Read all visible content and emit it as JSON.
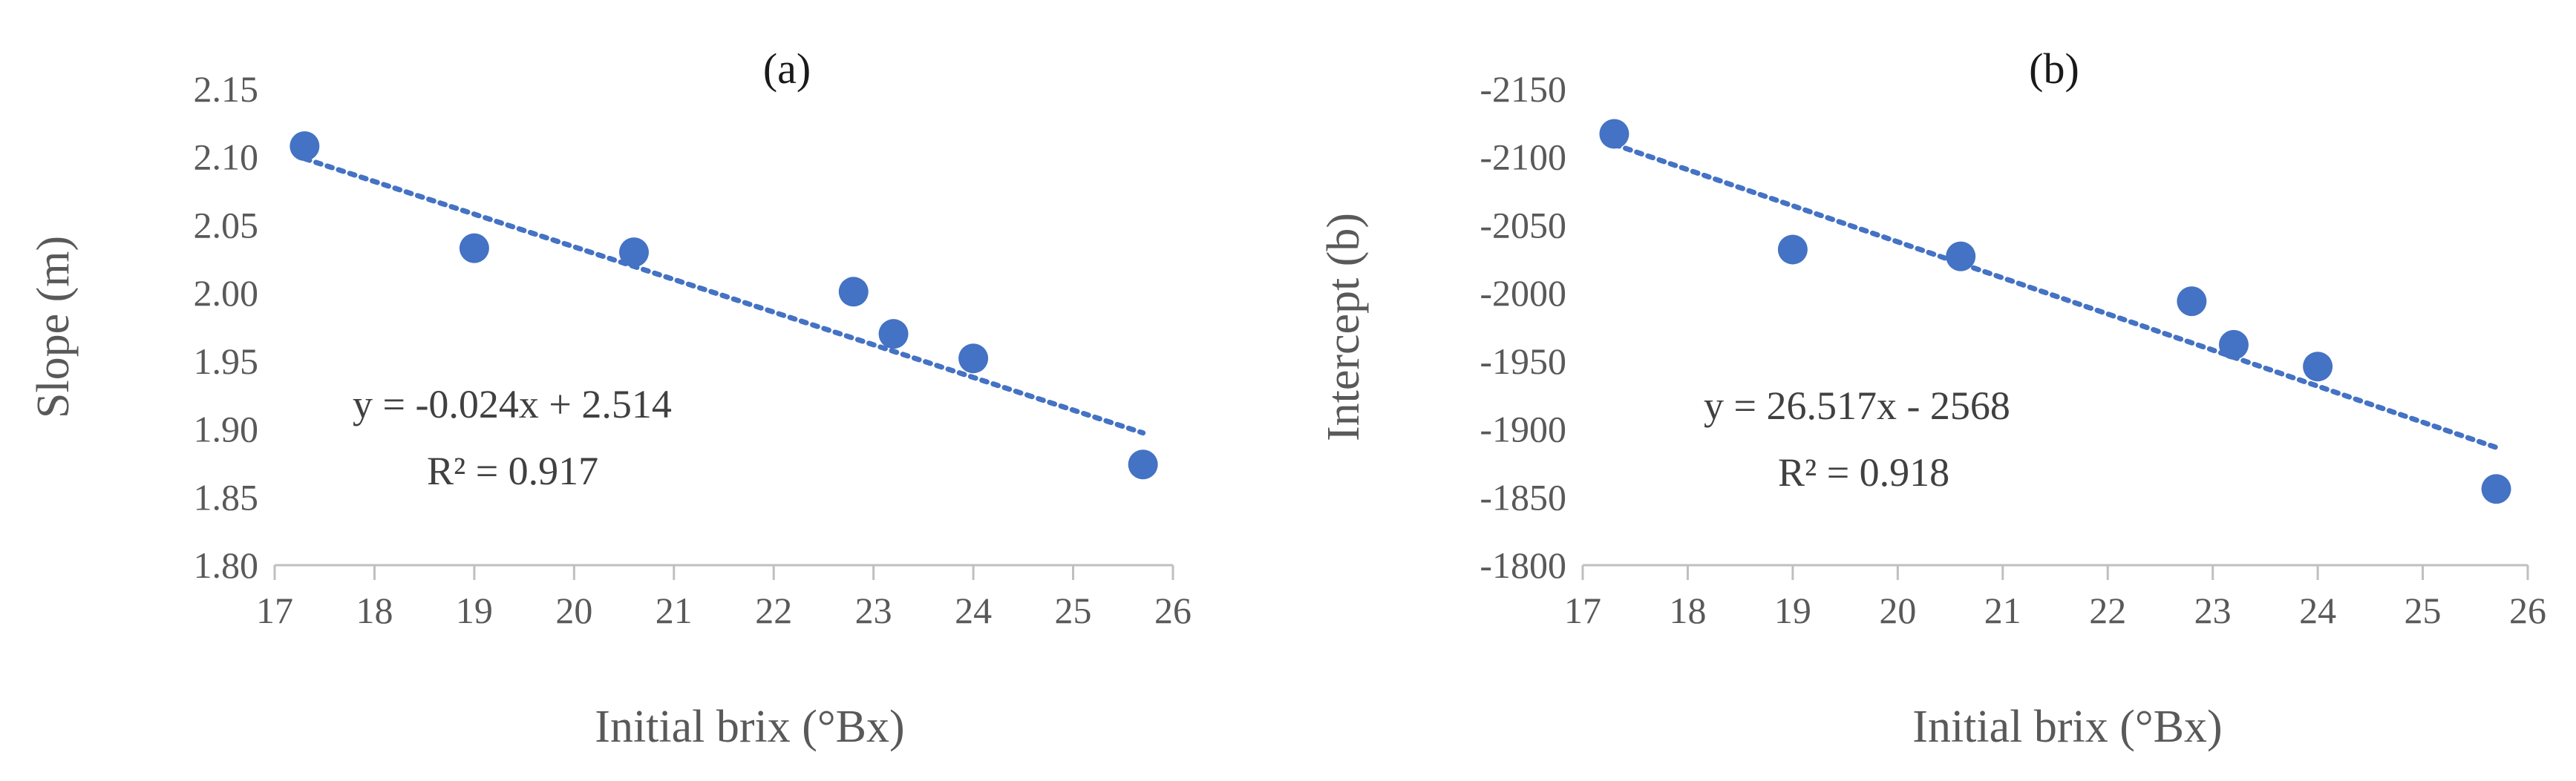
{
  "chart_data": [
    {
      "type": "scatter",
      "panel_label": "(a)",
      "xlabel": "Initial brix (°Bx)",
      "ylabel": "Slope (m)",
      "xlim": [
        17,
        26
      ],
      "ylim": [
        1.8,
        2.15
      ],
      "x_ticks": [
        "17",
        "18",
        "19",
        "20",
        "21",
        "22",
        "23",
        "24",
        "25",
        "26"
      ],
      "y_ticks": [
        "1.80",
        "1.85",
        "1.90",
        "1.95",
        "2.00",
        "2.05",
        "2.10",
        "2.15"
      ],
      "axis_reversed": false,
      "grid": false,
      "marker_color": "#4472C4",
      "trendline_color": "#4472C4",
      "points": [
        {
          "x": 17.3,
          "y": 2.108
        },
        {
          "x": 19.0,
          "y": 2.033
        },
        {
          "x": 20.6,
          "y": 2.03
        },
        {
          "x": 22.8,
          "y": 2.001
        },
        {
          "x": 23.2,
          "y": 1.97
        },
        {
          "x": 24.0,
          "y": 1.952
        },
        {
          "x": 25.7,
          "y": 1.874
        }
      ],
      "trendline": {
        "slope": -0.024,
        "intercept": 2.514,
        "x_start": 17.3,
        "x_end": 25.7
      },
      "equation": "y = -0.024x + 2.514",
      "r_squared": "R² = 0.917"
    },
    {
      "type": "scatter",
      "panel_label": "(b)",
      "xlabel": "Initial brix (°Bx)",
      "ylabel": "Intercept (b)",
      "xlim": [
        17,
        26
      ],
      "ylim": [
        -2150,
        -1800
      ],
      "x_ticks": [
        "17",
        "18",
        "19",
        "20",
        "21",
        "22",
        "23",
        "24",
        "25",
        "26"
      ],
      "y_ticks": [
        "-1800",
        "-1850",
        "-1900",
        "-1950",
        "-2000",
        "-2050",
        "-2100",
        "-2150"
      ],
      "axis_reversed": true,
      "grid": false,
      "marker_color": "#4472C4",
      "trendline_color": "#4472C4",
      "points": [
        {
          "x": 17.3,
          "y": -2117
        },
        {
          "x": 19.0,
          "y": -2032
        },
        {
          "x": 20.6,
          "y": -2027
        },
        {
          "x": 22.8,
          "y": -1994
        },
        {
          "x": 23.2,
          "y": -1962
        },
        {
          "x": 24.0,
          "y": -1946
        },
        {
          "x": 25.7,
          "y": -1856
        }
      ],
      "trendline": {
        "slope": 26.517,
        "intercept": -2568,
        "x_start": 17.3,
        "x_end": 25.7
      },
      "equation": "y = 26.517x - 2568",
      "r_squared": "R² = 0.918"
    }
  ]
}
